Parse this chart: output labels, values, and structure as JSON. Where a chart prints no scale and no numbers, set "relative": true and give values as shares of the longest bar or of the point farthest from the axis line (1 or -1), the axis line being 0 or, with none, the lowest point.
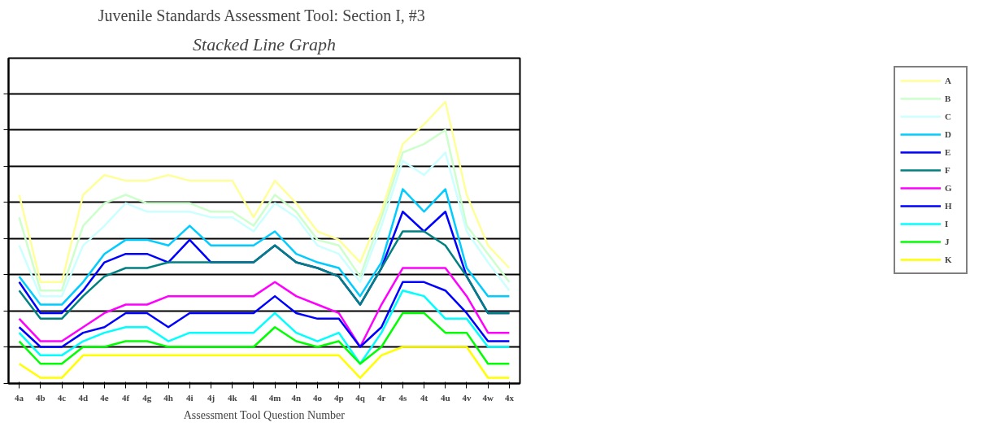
{
  "chart_data": {
    "type": "line",
    "title": "Juvenile Standards Assessment Tool:  Section I, #3",
    "subtitle": "Stacked Line Graph",
    "xlabel": "Assessment Tool Question Number",
    "relative": true,
    "grid": "y",
    "legend": "right",
    "marker": "none",
    "line_style": "solid",
    "categories": [
      "4a",
      "4b",
      "4c",
      "4d",
      "4e",
      "4f",
      "4g",
      "4h",
      "4i",
      "4j",
      "4k",
      "4l",
      "4m",
      "4n",
      "4o",
      "4p",
      "4q",
      "4r",
      "4s",
      "4t",
      "4u",
      "4v",
      "4w",
      "4x"
    ],
    "series": [
      {
        "name": "A",
        "color": "#ffff99",
        "values": [
          0.67,
          0.36,
          0.36,
          0.67,
          0.74,
          0.72,
          0.72,
          0.74,
          0.72,
          0.72,
          0.72,
          0.59,
          0.72,
          0.64,
          0.54,
          0.51,
          0.43,
          0.61,
          0.85,
          0.92,
          1.0,
          0.67,
          0.49,
          0.41
        ]
      },
      {
        "name": "B",
        "color": "#ccffcc",
        "values": [
          0.59,
          0.33,
          0.33,
          0.56,
          0.64,
          0.67,
          0.64,
          0.64,
          0.64,
          0.61,
          0.61,
          0.56,
          0.67,
          0.61,
          0.51,
          0.49,
          0.38,
          0.59,
          0.82,
          0.85,
          0.9,
          0.56,
          0.46,
          0.36
        ]
      },
      {
        "name": "C",
        "color": "#ccffff",
        "values": [
          0.49,
          0.31,
          0.31,
          0.49,
          0.56,
          0.64,
          0.61,
          0.61,
          0.61,
          0.59,
          0.59,
          0.54,
          0.64,
          0.59,
          0.49,
          0.46,
          0.36,
          0.56,
          0.79,
          0.74,
          0.82,
          0.54,
          0.43,
          0.33
        ]
      },
      {
        "name": "D",
        "color": "#00ccff",
        "values": [
          0.38,
          0.28,
          0.28,
          0.36,
          0.46,
          0.51,
          0.51,
          0.49,
          0.56,
          0.49,
          0.49,
          0.49,
          0.54,
          0.46,
          0.43,
          0.41,
          0.31,
          0.43,
          0.69,
          0.61,
          0.69,
          0.41,
          0.31,
          0.31
        ]
      },
      {
        "name": "E",
        "color": "#0000ff",
        "values": [
          0.36,
          0.25,
          0.25,
          0.33,
          0.43,
          0.46,
          0.46,
          0.43,
          0.51,
          0.43,
          0.43,
          0.43,
          0.49,
          0.43,
          0.41,
          0.38,
          0.28,
          0.41,
          0.61,
          0.54,
          0.61,
          0.38,
          0.25,
          0.25
        ]
      },
      {
        "name": "F",
        "color": "#008080",
        "values": [
          0.33,
          0.23,
          0.23,
          0.31,
          0.38,
          0.41,
          0.41,
          0.43,
          0.43,
          0.43,
          0.43,
          0.43,
          0.49,
          0.43,
          0.41,
          0.38,
          0.28,
          0.41,
          0.54,
          0.54,
          0.49,
          0.38,
          0.25,
          0.25
        ]
      },
      {
        "name": "G",
        "color": "#ff00ff",
        "values": [
          0.23,
          0.15,
          0.15,
          0.2,
          0.25,
          0.28,
          0.28,
          0.31,
          0.31,
          0.31,
          0.31,
          0.31,
          0.36,
          0.31,
          0.28,
          0.25,
          0.13,
          0.28,
          0.41,
          0.41,
          0.41,
          0.31,
          0.18,
          0.18
        ]
      },
      {
        "name": "H",
        "color": "#0000ff",
        "values": [
          0.2,
          0.13,
          0.13,
          0.18,
          0.2,
          0.25,
          0.25,
          0.2,
          0.25,
          0.25,
          0.25,
          0.25,
          0.31,
          0.25,
          0.23,
          0.23,
          0.13,
          0.2,
          0.36,
          0.36,
          0.33,
          0.25,
          0.15,
          0.15
        ]
      },
      {
        "name": "I",
        "color": "#00ffff",
        "values": [
          0.18,
          0.1,
          0.1,
          0.15,
          0.18,
          0.2,
          0.2,
          0.15,
          0.18,
          0.18,
          0.18,
          0.18,
          0.25,
          0.18,
          0.15,
          0.18,
          0.07,
          0.18,
          0.33,
          0.31,
          0.23,
          0.23,
          0.13,
          0.13
        ]
      },
      {
        "name": "J",
        "color": "#00ff00",
        "values": [
          0.15,
          0.07,
          0.07,
          0.13,
          0.13,
          0.15,
          0.15,
          0.13,
          0.13,
          0.13,
          0.13,
          0.13,
          0.2,
          0.15,
          0.13,
          0.15,
          0.07,
          0.13,
          0.25,
          0.25,
          0.18,
          0.18,
          0.07,
          0.07
        ]
      },
      {
        "name": "K",
        "color": "#ffff00",
        "values": [
          0.07,
          0.02,
          0.02,
          0.1,
          0.1,
          0.1,
          0.1,
          0.1,
          0.1,
          0.1,
          0.1,
          0.1,
          0.1,
          0.1,
          0.1,
          0.1,
          0.02,
          0.1,
          0.13,
          0.13,
          0.13,
          0.13,
          0.02,
          0.02
        ]
      }
    ]
  }
}
